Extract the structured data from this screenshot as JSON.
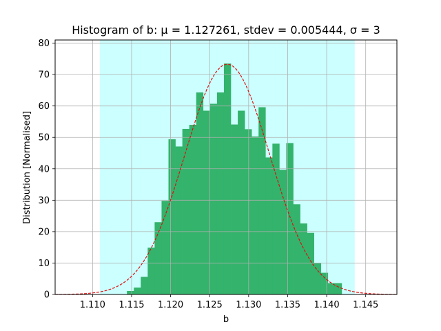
{
  "chart_data": {
    "type": "bar",
    "title": "Histogram of b:  μ = 1.127261,  stdev = 0.005444,  σ = 3",
    "xlabel": "b",
    "ylabel": "Distribution [Normalised]",
    "xlim": [
      1.1052,
      1.149
    ],
    "ylim": [
      0,
      81
    ],
    "grid": true,
    "xticks": [
      "1.110",
      "1.115",
      "1.120",
      "1.125",
      "1.130",
      "1.135",
      "1.140",
      "1.145"
    ],
    "xtick_values": [
      1.11,
      1.115,
      1.12,
      1.125,
      1.13,
      1.135,
      1.14,
      1.145
    ],
    "yticks": [
      "0",
      "10",
      "20",
      "30",
      "40",
      "50",
      "60",
      "70",
      "80"
    ],
    "ytick_values": [
      0,
      10,
      20,
      30,
      40,
      50,
      60,
      70,
      80
    ],
    "sigma_band": {
      "from": 1.110929,
      "to": 1.143593,
      "color": "#ccffff"
    },
    "bar_color": "#33b36b",
    "curve_color": "#dd1111",
    "mean": 1.127261,
    "stdev": 0.005444,
    "bins": {
      "start": 1.1144,
      "width": 0.000888,
      "values": [
        1.1,
        2.2,
        5.6,
        14.9,
        23.0,
        29.8,
        49.4,
        47.1,
        52.7,
        54.0,
        64.3,
        58.5,
        60.7,
        64.3,
        73.5,
        54.1,
        58.5,
        52.6,
        50.3,
        59.6,
        43.6,
        48.0,
        39.7,
        48.2,
        28.7,
        22.6,
        19.6,
        10.1,
        6.9,
        3.6,
        3.6
      ]
    }
  }
}
